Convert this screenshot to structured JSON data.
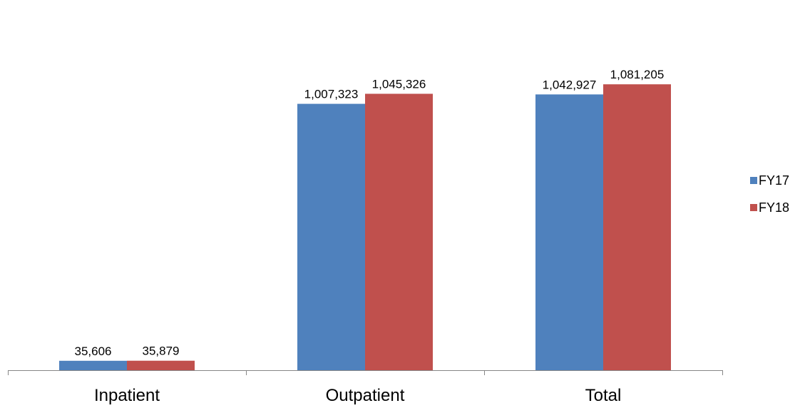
{
  "chart_data": {
    "type": "bar",
    "categories": [
      "Inpatient",
      "Outpatient",
      "Total"
    ],
    "series": [
      {
        "name": "FY17",
        "color": "#4F81BD",
        "values": [
          35606,
          1007323,
          1042927
        ]
      },
      {
        "name": "FY18",
        "color": "#C0504D",
        "values": [
          35879,
          1045326,
          1081205
        ]
      }
    ],
    "data_labels": [
      [
        "35,606",
        "1,007,323",
        "1,042,927"
      ],
      [
        "35,879",
        "1,045,326",
        "1,081,205"
      ]
    ],
    "title": "",
    "xlabel": "",
    "ylabel": "",
    "ylim": [
      0,
      1400000
    ],
    "y_axis_visible": false,
    "grid": false,
    "legend_position": "right",
    "axis_color": "#868686"
  }
}
